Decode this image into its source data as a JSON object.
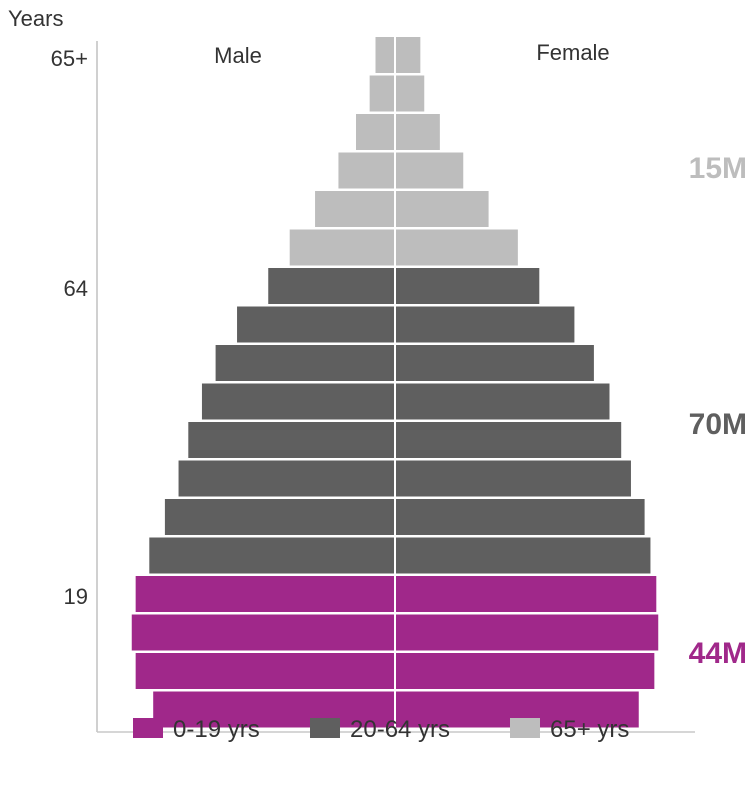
{
  "chart_data": {
    "type": "bar",
    "subtype": "population-pyramid",
    "y_axis_title": "Years",
    "y_tick_labels": [
      "65+",
      "64",
      "19"
    ],
    "side_labels": {
      "left": "Male",
      "right": "Female"
    },
    "groups": [
      {
        "key": "g0",
        "name": "0-19 yrs",
        "color": "#A0288A",
        "total": "44M"
      },
      {
        "key": "g1",
        "name": "20-64 yrs",
        "color": "#5F5F5F",
        "total": "70M"
      },
      {
        "key": "g2",
        "name": "65+ yrs",
        "color": "#BDBDBD",
        "total": "15M"
      }
    ],
    "bars_top_to_bottom": [
      {
        "group": "g2",
        "male": 1.0,
        "female": 1.3
      },
      {
        "group": "g2",
        "male": 1.3,
        "female": 1.5
      },
      {
        "group": "g2",
        "male": 2.0,
        "female": 2.3
      },
      {
        "group": "g2",
        "male": 2.9,
        "female": 3.5
      },
      {
        "group": "g2",
        "male": 4.1,
        "female": 4.8
      },
      {
        "group": "g2",
        "male": 5.4,
        "female": 6.3
      },
      {
        "group": "g1",
        "male": 6.5,
        "female": 7.4
      },
      {
        "group": "g1",
        "male": 8.1,
        "female": 9.2
      },
      {
        "group": "g1",
        "male": 9.2,
        "female": 10.2
      },
      {
        "group": "g1",
        "male": 9.9,
        "female": 11.0
      },
      {
        "group": "g1",
        "male": 10.6,
        "female": 11.6
      },
      {
        "group": "g1",
        "male": 11.1,
        "female": 12.1
      },
      {
        "group": "g1",
        "male": 11.8,
        "female": 12.8
      },
      {
        "group": "g1",
        "male": 12.6,
        "female": 13.1
      },
      {
        "group": "g0",
        "male": 13.3,
        "female": 13.4
      },
      {
        "group": "g0",
        "male": 13.5,
        "female": 13.5
      },
      {
        "group": "g0",
        "male": 13.3,
        "female": 13.3
      },
      {
        "group": "g0",
        "male": 12.4,
        "female": 12.5
      }
    ]
  }
}
